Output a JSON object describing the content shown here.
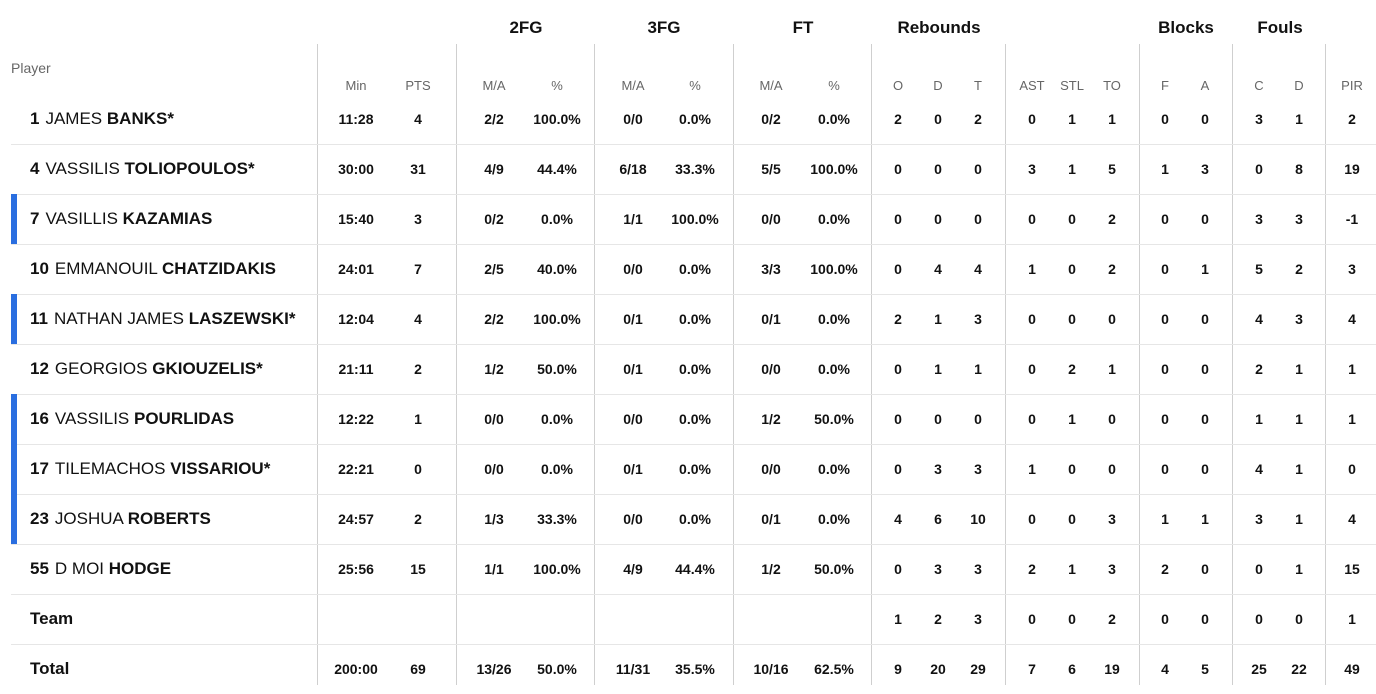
{
  "headers": {
    "player": "Player",
    "groups": {
      "fg2": "2FG",
      "fg3": "3FG",
      "ft": "FT",
      "rebounds": "Rebounds",
      "blocks": "Blocks",
      "fouls": "Fouls"
    },
    "cols": {
      "min": "Min",
      "pts": "PTS",
      "fg2_ma": "M/A",
      "fg2_pct": "%",
      "fg3_ma": "M/A",
      "fg3_pct": "%",
      "ft_ma": "M/A",
      "ft_pct": "%",
      "reb_o": "O",
      "reb_d": "D",
      "reb_t": "T",
      "ast": "AST",
      "stl": "STL",
      "to": "TO",
      "blk_f": "F",
      "blk_a": "A",
      "foul_c": "C",
      "foul_d": "D",
      "pir": "PIR"
    }
  },
  "players": [
    {
      "num": "1",
      "first": "JAMES",
      "last": "BANKS*",
      "accent": false,
      "stats": {
        "min": "11:28",
        "pts": "4",
        "fg2_ma": "2/2",
        "fg2_pct": "100.0%",
        "fg3_ma": "0/0",
        "fg3_pct": "0.0%",
        "ft_ma": "0/2",
        "ft_pct": "0.0%",
        "reb_o": "2",
        "reb_d": "0",
        "reb_t": "2",
        "ast": "0",
        "stl": "1",
        "to": "1",
        "blk_f": "0",
        "blk_a": "0",
        "foul_c": "3",
        "foul_d": "1",
        "pir": "2"
      }
    },
    {
      "num": "4",
      "first": "VASSILIS",
      "last": "TOLIOPOULOS*",
      "accent": false,
      "stats": {
        "min": "30:00",
        "pts": "31",
        "fg2_ma": "4/9",
        "fg2_pct": "44.4%",
        "fg3_ma": "6/18",
        "fg3_pct": "33.3%",
        "ft_ma": "5/5",
        "ft_pct": "100.0%",
        "reb_o": "0",
        "reb_d": "0",
        "reb_t": "0",
        "ast": "3",
        "stl": "1",
        "to": "5",
        "blk_f": "1",
        "blk_a": "3",
        "foul_c": "0",
        "foul_d": "8",
        "pir": "19"
      }
    },
    {
      "num": "7",
      "first": "VASILLIS",
      "last": "KAZAMIAS",
      "accent": true,
      "stats": {
        "min": "15:40",
        "pts": "3",
        "fg2_ma": "0/2",
        "fg2_pct": "0.0%",
        "fg3_ma": "1/1",
        "fg3_pct": "100.0%",
        "ft_ma": "0/0",
        "ft_pct": "0.0%",
        "reb_o": "0",
        "reb_d": "0",
        "reb_t": "0",
        "ast": "0",
        "stl": "0",
        "to": "2",
        "blk_f": "0",
        "blk_a": "0",
        "foul_c": "3",
        "foul_d": "3",
        "pir": "-1"
      }
    },
    {
      "num": "10",
      "first": "EMMANOUIL",
      "last": "CHATZIDAKIS",
      "accent": false,
      "stats": {
        "min": "24:01",
        "pts": "7",
        "fg2_ma": "2/5",
        "fg2_pct": "40.0%",
        "fg3_ma": "0/0",
        "fg3_pct": "0.0%",
        "ft_ma": "3/3",
        "ft_pct": "100.0%",
        "reb_o": "0",
        "reb_d": "4",
        "reb_t": "4",
        "ast": "1",
        "stl": "0",
        "to": "2",
        "blk_f": "0",
        "blk_a": "1",
        "foul_c": "5",
        "foul_d": "2",
        "pir": "3"
      }
    },
    {
      "num": "11",
      "first": "NATHAN JAMES",
      "last": "LASZEWSKI*",
      "accent": true,
      "stats": {
        "min": "12:04",
        "pts": "4",
        "fg2_ma": "2/2",
        "fg2_pct": "100.0%",
        "fg3_ma": "0/1",
        "fg3_pct": "0.0%",
        "ft_ma": "0/1",
        "ft_pct": "0.0%",
        "reb_o": "2",
        "reb_d": "1",
        "reb_t": "3",
        "ast": "0",
        "stl": "0",
        "to": "0",
        "blk_f": "0",
        "blk_a": "0",
        "foul_c": "4",
        "foul_d": "3",
        "pir": "4"
      }
    },
    {
      "num": "12",
      "first": "GEORGIOS",
      "last": "GKIOUZELIS*",
      "accent": false,
      "stats": {
        "min": "21:11",
        "pts": "2",
        "fg2_ma": "1/2",
        "fg2_pct": "50.0%",
        "fg3_ma": "0/1",
        "fg3_pct": "0.0%",
        "ft_ma": "0/0",
        "ft_pct": "0.0%",
        "reb_o": "0",
        "reb_d": "1",
        "reb_t": "1",
        "ast": "0",
        "stl": "2",
        "to": "1",
        "blk_f": "0",
        "blk_a": "0",
        "foul_c": "2",
        "foul_d": "1",
        "pir": "1"
      }
    },
    {
      "num": "16",
      "first": "VASSILIS",
      "last": "POURLIDAS",
      "accent": true,
      "stats": {
        "min": "12:22",
        "pts": "1",
        "fg2_ma": "0/0",
        "fg2_pct": "0.0%",
        "fg3_ma": "0/0",
        "fg3_pct": "0.0%",
        "ft_ma": "1/2",
        "ft_pct": "50.0%",
        "reb_o": "0",
        "reb_d": "0",
        "reb_t": "0",
        "ast": "0",
        "stl": "1",
        "to": "0",
        "blk_f": "0",
        "blk_a": "0",
        "foul_c": "1",
        "foul_d": "1",
        "pir": "1"
      }
    },
    {
      "num": "17",
      "first": "TILEMACHOS",
      "last": "VISSARIOU*",
      "accent": true,
      "stats": {
        "min": "22:21",
        "pts": "0",
        "fg2_ma": "0/0",
        "fg2_pct": "0.0%",
        "fg3_ma": "0/1",
        "fg3_pct": "0.0%",
        "ft_ma": "0/0",
        "ft_pct": "0.0%",
        "reb_o": "0",
        "reb_d": "3",
        "reb_t": "3",
        "ast": "1",
        "stl": "0",
        "to": "0",
        "blk_f": "0",
        "blk_a": "0",
        "foul_c": "4",
        "foul_d": "1",
        "pir": "0"
      }
    },
    {
      "num": "23",
      "first": "JOSHUA",
      "last": "ROBERTS",
      "accent": true,
      "stats": {
        "min": "24:57",
        "pts": "2",
        "fg2_ma": "1/3",
        "fg2_pct": "33.3%",
        "fg3_ma": "0/0",
        "fg3_pct": "0.0%",
        "ft_ma": "0/1",
        "ft_pct": "0.0%",
        "reb_o": "4",
        "reb_d": "6",
        "reb_t": "10",
        "ast": "0",
        "stl": "0",
        "to": "3",
        "blk_f": "1",
        "blk_a": "1",
        "foul_c": "3",
        "foul_d": "1",
        "pir": "4"
      }
    },
    {
      "num": "55",
      "first": "D MOI",
      "last": "HODGE",
      "accent": false,
      "stats": {
        "min": "25:56",
        "pts": "15",
        "fg2_ma": "1/1",
        "fg2_pct": "100.0%",
        "fg3_ma": "4/9",
        "fg3_pct": "44.4%",
        "ft_ma": "1/2",
        "ft_pct": "50.0%",
        "reb_o": "0",
        "reb_d": "3",
        "reb_t": "3",
        "ast": "2",
        "stl": "1",
        "to": "3",
        "blk_f": "2",
        "blk_a": "0",
        "foul_c": "0",
        "foul_d": "1",
        "pir": "15"
      }
    }
  ],
  "team": {
    "label": "Team",
    "stats": {
      "reb_o": "1",
      "reb_d": "2",
      "reb_t": "3",
      "ast": "0",
      "stl": "0",
      "to": "2",
      "blk_f": "0",
      "blk_a": "0",
      "foul_c": "0",
      "foul_d": "0",
      "pir": "1"
    }
  },
  "total": {
    "label": "Total",
    "stats": {
      "min": "200:00",
      "pts": "69",
      "fg2_ma": "13/26",
      "fg2_pct": "50.0%",
      "fg3_ma": "11/31",
      "fg3_pct": "35.5%",
      "ft_ma": "10/16",
      "ft_pct": "62.5%",
      "reb_o": "9",
      "reb_d": "20",
      "reb_t": "29",
      "ast": "7",
      "stl": "6",
      "to": "19",
      "blk_f": "4",
      "blk_a": "5",
      "foul_c": "25",
      "foul_d": "22",
      "pir": "49"
    }
  },
  "colors": {
    "accent": "#2a6ee0",
    "divider": "#cfcfcf",
    "header_text": "#666666",
    "text": "#111111"
  }
}
